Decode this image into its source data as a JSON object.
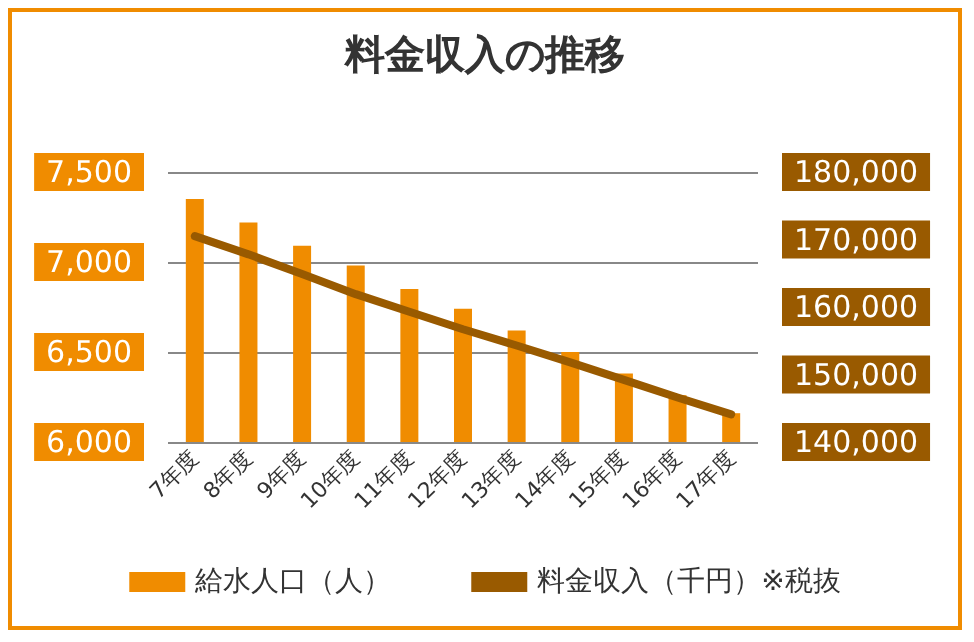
{
  "chart_data": {
    "type": "bar",
    "title": "料金収入の推移",
    "categories": [
      "7年度",
      "8年度",
      "9年度",
      "10年度",
      "11年度",
      "12年度",
      "13年度",
      "14年度",
      "15年度",
      "16年度",
      "17年度"
    ],
    "series": [
      {
        "name": "給水人口（人）",
        "color": "#f08c00",
        "values": [
          7350,
          7220,
          7090,
          6980,
          6850,
          6740,
          6620,
          6500,
          6380,
          6260,
          6160
        ]
      },
      {
        "name": "料金収入（千円）※税抜",
        "type": "line",
        "axis": "y2",
        "color": "#995a00",
        "values": [
          170500,
          167800,
          164900,
          161900,
          159300,
          156700,
          154300,
          151800,
          149200,
          146600,
          144100
        ]
      }
    ],
    "ylim": [
      6000,
      7500
    ],
    "yticks": [
      {
        "value": 6000,
        "label": "6,000"
      },
      {
        "value": 6500,
        "label": "6,500"
      },
      {
        "value": 7000,
        "label": "7,000"
      },
      {
        "value": 7500,
        "label": "7,500"
      }
    ],
    "y2lim": [
      140000,
      180000
    ],
    "y2ticks": [
      {
        "value": 140000,
        "label": "140,000"
      },
      {
        "value": 150000,
        "label": "150,000"
      },
      {
        "value": 160000,
        "label": "160,000"
      },
      {
        "value": 170000,
        "label": "170,000"
      },
      {
        "value": 180000,
        "label": "180,000"
      }
    ],
    "grid": "y",
    "legend": "bottom",
    "marker": "none",
    "line_style": "solid"
  }
}
